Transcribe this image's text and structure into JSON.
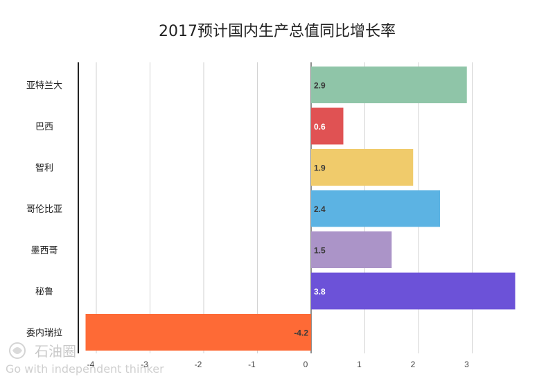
{
  "chart_data": {
    "type": "bar",
    "orientation": "horizontal",
    "title": "2017预计国内生产总值同比增长率",
    "categories": [
      "亚特兰大",
      "巴西",
      "智利",
      "哥伦比亚",
      "墨西哥",
      "秘鲁",
      "委内瑞拉"
    ],
    "values": [
      2.9,
      0.6,
      1.9,
      2.4,
      1.5,
      3.8,
      -4.2
    ],
    "data_labels": [
      "2.9",
      "0.6",
      "1.9",
      "2.4",
      "1.5",
      "3.8",
      "-4.2"
    ],
    "colors": [
      "#8fc5a8",
      "#e05253",
      "#f0cb6b",
      "#5cb3e3",
      "#ab94c8",
      "#6c52d8",
      "#fe6a36"
    ],
    "label_colors": [
      "#3a3a3a",
      "#ffffff",
      "#3a3a3a",
      "#3a3a3a",
      "#3a3a3a",
      "#ffffff",
      "#3a3a3a"
    ],
    "xlim": [
      -4.3,
      3.8
    ],
    "xticks": [
      -4,
      -3,
      -2,
      -1,
      0,
      1,
      2,
      3
    ],
    "xtick_labels": [
      "-4",
      "-3",
      "-2",
      "-1",
      "0",
      "1",
      "2",
      "3"
    ],
    "grid": true
  },
  "watermark": {
    "name": "石油圈",
    "tagline": "Go with independent thinker"
  }
}
